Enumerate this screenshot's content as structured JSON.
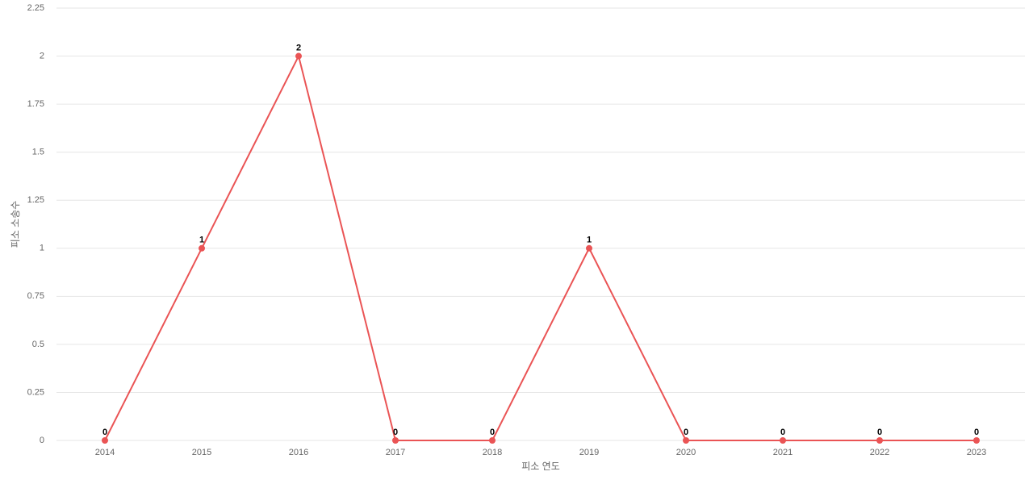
{
  "chart_data": {
    "type": "line",
    "x_label": "피소 연도",
    "y_label": "피소 소송수",
    "categories": [
      "2014",
      "2015",
      "2016",
      "2017",
      "2018",
      "2019",
      "2020",
      "2021",
      "2022",
      "2023"
    ],
    "values": [
      0,
      1,
      2,
      0,
      0,
      1,
      0,
      0,
      0,
      0
    ],
    "color": "#ea5455",
    "ylim": [
      0,
      2.25
    ],
    "yticks": [
      0,
      0.25,
      0.5,
      0.75,
      1,
      1.25,
      1.5,
      1.75,
      2,
      2.25
    ],
    "grid": true,
    "data_labels": true
  }
}
